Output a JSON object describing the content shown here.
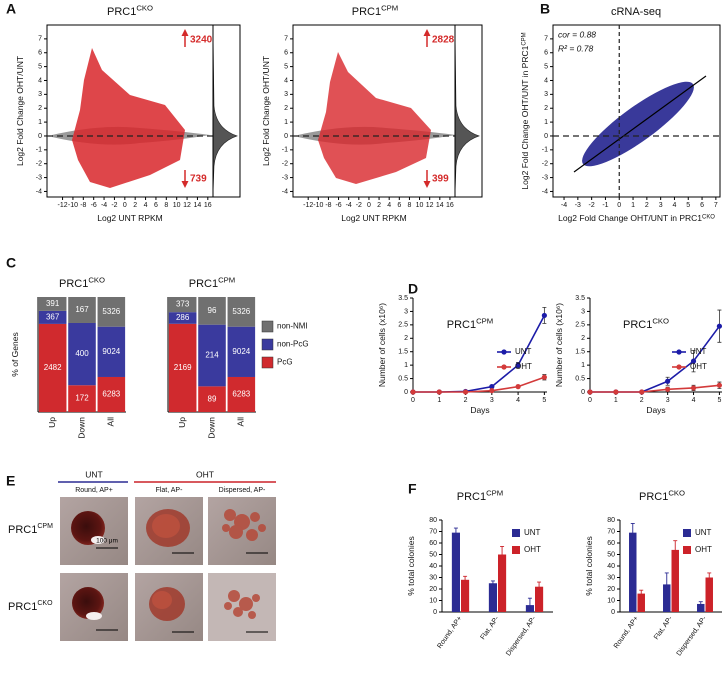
{
  "panel_labels": [
    "A",
    "B",
    "C",
    "D",
    "E",
    "F"
  ],
  "chart_data": [
    {
      "type": "scatter",
      "title": "PRC1",
      "title_sup": "CKO",
      "xlabel": "Log2 UNT RPKM",
      "ylabel": "Log2 Fold Change OHT/UNT",
      "xlim": [
        -15,
        17
      ],
      "xticks": [
        -12,
        -10,
        -8,
        -6,
        -4,
        -2,
        0,
        2,
        4,
        6,
        8,
        10,
        12,
        14,
        16
      ],
      "ylim": [
        -4.4,
        8
      ],
      "yticks": [
        -4,
        -3,
        -2,
        -1,
        0,
        1,
        2,
        3,
        4,
        5,
        6,
        7
      ],
      "up_count": 3240,
      "down_count": 739
    },
    {
      "type": "scatter",
      "title": "PRC1",
      "title_sup": "CPM",
      "xlabel": "Log2 UNT RPKM",
      "ylabel": "Log2 Fold Change OHT/UNT",
      "xlim": [
        -15,
        17
      ],
      "xticks": [
        -12,
        -10,
        -8,
        -6,
        -4,
        -2,
        0,
        2,
        4,
        6,
        8,
        10,
        12,
        14,
        16
      ],
      "ylim": [
        -4.4,
        8
      ],
      "yticks": [
        -4,
        -3,
        -2,
        -1,
        0,
        1,
        2,
        3,
        4,
        5,
        6,
        7
      ],
      "up_count": 2828,
      "down_count": 399
    },
    {
      "type": "scatter",
      "title": "cRNA-seq",
      "xlabel": "Log2 Fold Change OHT/UNT in PRC1",
      "xlabel_sup": "CKO",
      "ylabel": "Log2 Fold Change OHT/UNT in PRC1",
      "ylabel_sup": "CPM",
      "xlim": [
        -4.8,
        7.3
      ],
      "xticks": [
        -4,
        -3,
        -2,
        -1,
        0,
        1,
        2,
        3,
        4,
        5,
        6,
        7
      ],
      "ylim": [
        -4.4,
        8
      ],
      "yticks": [
        -4,
        -3,
        -2,
        -1,
        0,
        1,
        2,
        3,
        4,
        5,
        6,
        7
      ],
      "annotations": [
        "cor = 0.88",
        "R² = 0.78"
      ]
    },
    {
      "type": "stacked_percent",
      "title": "PRC1",
      "title_sup": "CKO",
      "ylabel": "% of Genes",
      "categories": [
        "Up",
        "Down",
        "All"
      ],
      "ylim": [
        0,
        100
      ],
      "series": [
        {
          "name": "PcG",
          "color": "#d02a2e",
          "values": [
            2482,
            172,
            6283
          ]
        },
        {
          "name": "non-PcG",
          "color": "#3a3a9e",
          "values": [
            367,
            400,
            9024
          ]
        },
        {
          "name": "non-NMI",
          "color": "#707070",
          "values": [
            391,
            167,
            5326
          ]
        }
      ]
    },
    {
      "type": "stacked_percent",
      "title": "PRC1",
      "title_sup": "CPM",
      "categories": [
        "Up",
        "Down",
        "All"
      ],
      "ylim": [
        0,
        100
      ],
      "series": [
        {
          "color": "#d02a2e",
          "values": [
            2169,
            89,
            6283
          ]
        },
        {
          "color": "#3a3a9e",
          "values": [
            286,
            214,
            9024
          ]
        },
        {
          "color": "#707070",
          "values": [
            373,
            96,
            5326
          ]
        }
      ]
    },
    {
      "type": "line",
      "title": "PRC1",
      "title_sup": "CPM",
      "xlabel": "Days",
      "ylabel": "Number of cells (x10⁶)",
      "x": [
        0,
        1,
        2,
        3,
        4,
        5
      ],
      "xlim": [
        0,
        5.1
      ],
      "xticks": [
        0,
        1,
        2,
        3,
        4,
        5
      ],
      "ylim": [
        0,
        3.5
      ],
      "yticks": [
        0,
        0.5,
        1,
        1.5,
        2,
        2.5,
        3,
        3.5
      ],
      "series": [
        {
          "name": "UNT",
          "color": "#1c1ca8",
          "values": [
            0,
            0,
            0.02,
            0.2,
            1.0,
            2.85
          ],
          "errors": [
            0,
            0,
            0,
            0.05,
            0.1,
            0.3
          ]
        },
        {
          "name": "OHT",
          "color": "#d33a3a",
          "values": [
            0,
            0,
            0,
            0.05,
            0.2,
            0.55
          ],
          "errors": [
            0,
            0,
            0,
            0.02,
            0.05,
            0.1
          ]
        }
      ]
    },
    {
      "type": "line",
      "title": "PRC1",
      "title_sup": "CKO",
      "xlabel": "Days",
      "ylabel": "Number of cells (x10⁶)",
      "x": [
        0,
        1,
        2,
        3,
        4,
        5
      ],
      "xlim": [
        0,
        5.1
      ],
      "xticks": [
        0,
        1,
        2,
        3,
        4,
        5
      ],
      "ylim": [
        0,
        3.5
      ],
      "yticks": [
        0,
        0.5,
        1,
        1.5,
        2,
        2.5,
        3,
        3.5
      ],
      "series": [
        {
          "name": "UNT",
          "color": "#1c1ca8",
          "values": [
            0,
            0,
            0,
            0.4,
            1.15,
            2.45
          ],
          "errors": [
            0,
            0,
            0,
            0.15,
            0.4,
            0.6
          ]
        },
        {
          "name": "OHT",
          "color": "#d33a3a",
          "values": [
            0,
            0,
            0,
            0.1,
            0.15,
            0.25
          ],
          "errors": [
            0,
            0,
            0,
            0.08,
            0.1,
            0.12
          ]
        }
      ]
    },
    {
      "type": "grouped_bar",
      "title": "PRC1",
      "title_sup": "CPM",
      "ylabel": "% total colonies",
      "categories": [
        "Round, AP+",
        "Flat, AP-",
        "Dispersed, AP-"
      ],
      "ylim": [
        0,
        80
      ],
      "yticks": [
        0,
        10,
        20,
        30,
        40,
        50,
        60,
        70,
        80
      ],
      "series": [
        {
          "name": "UNT",
          "color": "#2b2b93",
          "values": [
            69,
            25,
            6
          ],
          "errors": [
            4,
            2,
            6
          ]
        },
        {
          "name": "OHT",
          "color": "#cc2229",
          "values": [
            28,
            50,
            22
          ],
          "errors": [
            3,
            7,
            4
          ]
        }
      ]
    },
    {
      "type": "grouped_bar",
      "title": "PRC1",
      "title_sup": "CKO",
      "ylabel": "% total colonies",
      "categories": [
        "Round, AP+",
        "Flat, AP-",
        "Dispersed, AP-"
      ],
      "ylim": [
        0,
        80
      ],
      "yticks": [
        0,
        10,
        20,
        30,
        40,
        50,
        60,
        70,
        80
      ],
      "series": [
        {
          "name": "UNT",
          "color": "#2b2b93",
          "values": [
            69,
            24,
            7
          ],
          "errors": [
            8,
            10,
            2
          ]
        },
        {
          "name": "OHT",
          "color": "#cc2229",
          "values": [
            16,
            54,
            30
          ],
          "errors": [
            3,
            8,
            4
          ]
        }
      ]
    }
  ],
  "panel_e": {
    "groups": [
      "UNT",
      "OHT"
    ],
    "columns": [
      "Round, AP+",
      "Flat, AP-",
      "Dispersed, AP-"
    ],
    "rows": [
      {
        "name": "PRC1",
        "sup": "CPM"
      },
      {
        "name": "PRC1",
        "sup": "CKO"
      }
    ],
    "scale_label": "100 μm"
  }
}
